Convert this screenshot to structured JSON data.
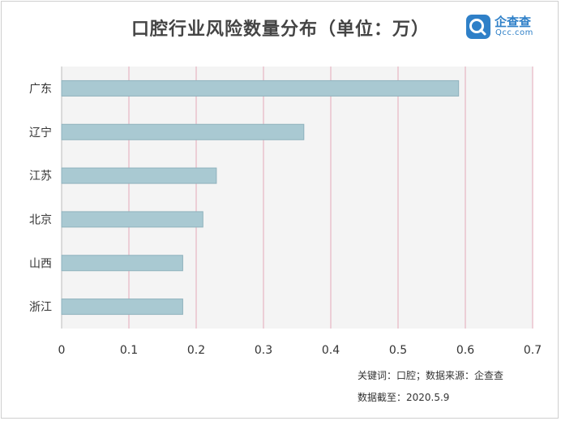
{
  "title": "口腔行业风险数量分布（单位：万）",
  "logo": {
    "name_cn": "企查查",
    "name_en": "Qcc.com"
  },
  "footer": {
    "keywords": "关键词：口腔；数据来源：企查查",
    "date": "数据截至：2020.5.9"
  },
  "colors": {
    "bar": "#a9c9d2",
    "bar_edge": "#8fb2bd",
    "grid": "#e3a9b7",
    "plot_bg": "#f4f4f4",
    "logo": "#2f80c8"
  },
  "chart_data": {
    "type": "bar",
    "orientation": "horizontal",
    "title": "口腔行业风险数量分布（单位：万）",
    "categories": [
      "广东",
      "辽宁",
      "江苏",
      "北京",
      "山西",
      "浙江"
    ],
    "values": [
      0.59,
      0.36,
      0.23,
      0.21,
      0.18,
      0.18
    ],
    "xlim": [
      0,
      0.7
    ],
    "xticks": [
      "0",
      "0.1",
      "0.2",
      "0.3",
      "0.4",
      "0.5",
      "0.6",
      "0.7"
    ],
    "grid": "vertical",
    "xlabel": "",
    "ylabel": ""
  }
}
